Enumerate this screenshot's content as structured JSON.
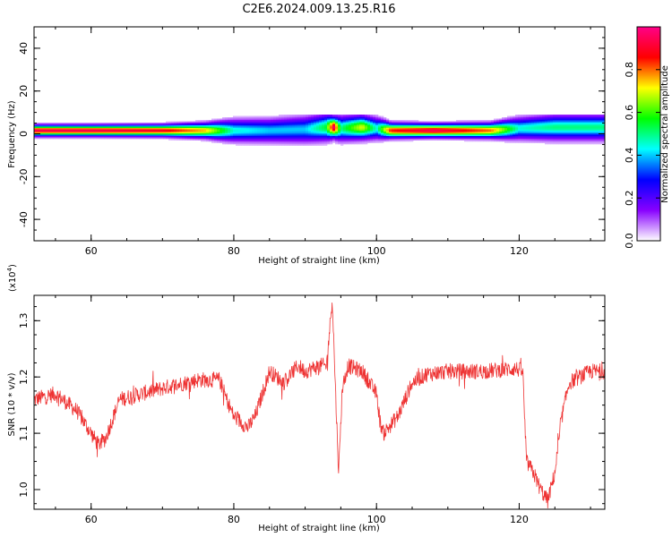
{
  "title": "C2E6.2024.009.13.25.R16",
  "chart_data": [
    {
      "type": "heatmap",
      "xlabel": "Height of straight line (km)",
      "ylabel": "Frequency (Hz)",
      "xlim": [
        52,
        132
      ],
      "ylim": [
        -50,
        50
      ],
      "x_ticks": [
        60,
        80,
        100,
        120
      ],
      "y_ticks": [
        -40,
        -20,
        0,
        20,
        40
      ],
      "colorbar": {
        "label": "Normalized spectral amplitude",
        "range": [
          0,
          1
        ],
        "ticks": [
          "0.0",
          "0.2",
          "0.4",
          "0.6",
          "0.8"
        ],
        "colormap": [
          "#ffffff",
          "#8800ff",
          "#0000ff",
          "#00ffff",
          "#00ff00",
          "#ffff00",
          "#ff0000",
          "#ff0088"
        ]
      },
      "ridge": {
        "x": [
          53,
          60,
          70,
          76,
          80,
          85,
          90,
          93,
          94,
          95,
          98,
          100,
          102,
          108,
          116,
          120,
          125,
          132
        ],
        "center_freq": [
          1.5,
          1.5,
          1.5,
          1.5,
          1.5,
          1.5,
          2,
          3,
          3,
          2.5,
          3,
          2.5,
          1.5,
          1.5,
          1.5,
          2.5,
          3,
          3
        ],
        "peak": [
          0.95,
          0.95,
          0.9,
          0.75,
          0.45,
          0.4,
          0.4,
          0.55,
          0.95,
          0.5,
          0.7,
          0.45,
          0.85,
          0.95,
          0.8,
          0.45,
          0.5,
          0.5
        ],
        "half_width": [
          1.5,
          1.5,
          1.6,
          2.0,
          3.0,
          3.2,
          3.6,
          3.6,
          2.8,
          3.4,
          3.2,
          3.0,
          2.0,
          1.8,
          2.0,
          3.0,
          3.4,
          3.4
        ]
      }
    },
    {
      "type": "line",
      "xlabel": "Height of straight line (km)",
      "ylabel": "SNR (10 * v/v)",
      "scale_note": "(x10",
      "scale_exp": "4",
      "scale_close": ")",
      "xlim": [
        52,
        132
      ],
      "ylim": [
        0.965,
        1.345
      ],
      "x_ticks": [
        60,
        80,
        100,
        120
      ],
      "y_ticks": [
        1.0,
        1.1,
        1.2,
        1.3
      ],
      "color": "#ee3333",
      "series": [
        {
          "x": [
            52,
            55,
            58,
            60,
            61,
            62,
            64,
            70,
            75,
            78,
            79,
            80,
            82,
            83,
            84,
            85,
            87,
            89,
            90,
            92,
            93,
            93.8,
            94.3,
            94.7,
            95.2,
            96,
            98,
            100,
            100.5,
            101,
            103,
            105,
            107,
            110,
            115,
            119.5,
            120.5,
            121,
            122,
            123,
            124,
            125,
            126,
            127,
            130,
            132
          ],
          "y": [
            1.16,
            1.17,
            1.14,
            1.1,
            1.08,
            1.09,
            1.16,
            1.18,
            1.195,
            1.195,
            1.16,
            1.13,
            1.11,
            1.13,
            1.17,
            1.21,
            1.19,
            1.22,
            1.21,
            1.22,
            1.22,
            1.34,
            1.16,
            1.03,
            1.18,
            1.22,
            1.21,
            1.17,
            1.12,
            1.1,
            1.13,
            1.19,
            1.205,
            1.21,
            1.21,
            1.215,
            1.21,
            1.05,
            1.03,
            1.0,
            0.98,
            1.03,
            1.13,
            1.19,
            1.21,
            1.21
          ]
        }
      ]
    }
  ]
}
